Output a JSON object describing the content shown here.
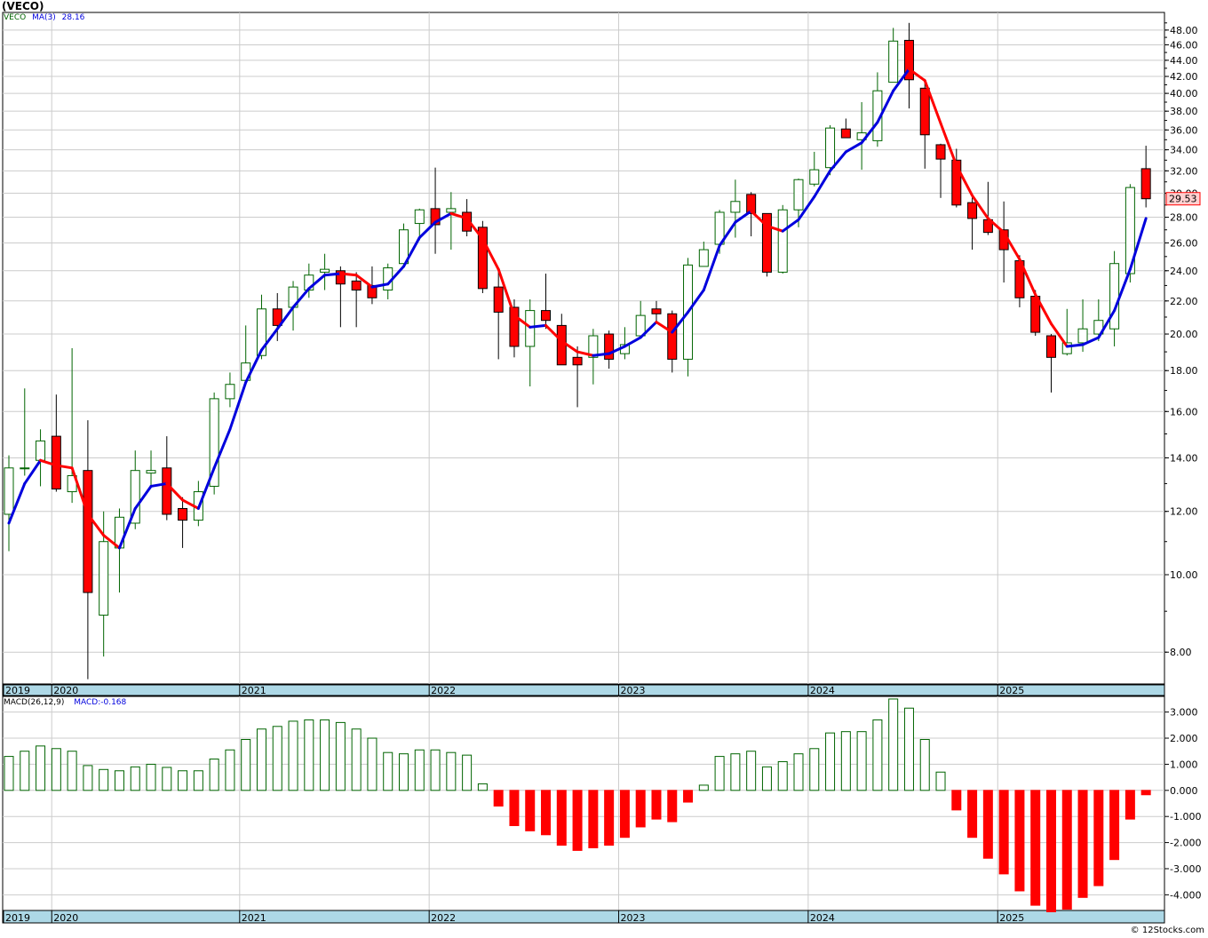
{
  "header": {
    "title": "(VECO)"
  },
  "price_legend": {
    "symbol": "VECO",
    "ma_label": "MA(3)",
    "ma_value": "28.16"
  },
  "macd_legend": {
    "label": "MACD(26,12,9)",
    "value_label": "MACD:-0.168"
  },
  "last_price_tag": "29.53",
  "credit": "© 12Stocks.com",
  "colors": {
    "up": "#006400",
    "down": "#ff0000",
    "ma_up": "#0000dd",
    "ma_down": "#ff0000",
    "axis_band": "#add8e6",
    "grid": "#cccccc"
  },
  "chart_data": [
    {
      "type": "candlestick",
      "scale": "log",
      "ylim": [
        7.3,
        50.5
      ],
      "y_ticks": [
        "8.00",
        "10.00",
        "12.00",
        "14.00",
        "16.00",
        "18.00",
        "20.00",
        "22.00",
        "24.00",
        "26.00",
        "28.00",
        "30.00",
        "32.00",
        "34.00",
        "36.00",
        "38.00",
        "40.00",
        "42.00",
        "44.00",
        "46.00",
        "48.00"
      ],
      "x_labels": [
        "2019",
        "2020",
        "2021",
        "2022",
        "2023",
        "2024",
        "2025"
      ],
      "grid": true,
      "candles": [
        {
          "o": 11.9,
          "h": 14.1,
          "l": 10.7,
          "c": 13.6
        },
        {
          "o": 13.6,
          "h": 17.1,
          "l": 13.3,
          "c": 13.6
        },
        {
          "o": 13.9,
          "h": 15.2,
          "l": 12.9,
          "c": 14.7
        },
        {
          "o": 14.9,
          "h": 16.8,
          "l": 12.7,
          "c": 12.8
        },
        {
          "o": 12.7,
          "h": 19.2,
          "l": 12.3,
          "c": 13.3
        },
        {
          "o": 13.5,
          "h": 15.6,
          "l": 7.4,
          "c": 9.5
        },
        {
          "o": 8.9,
          "h": 12.0,
          "l": 7.9,
          "c": 11.0
        },
        {
          "o": 10.8,
          "h": 12.1,
          "l": 9.5,
          "c": 11.8
        },
        {
          "o": 11.6,
          "h": 14.3,
          "l": 11.4,
          "c": 13.5
        },
        {
          "o": 13.4,
          "h": 14.3,
          "l": 12.9,
          "c": 13.5
        },
        {
          "o": 13.6,
          "h": 14.9,
          "l": 11.7,
          "c": 11.9
        },
        {
          "o": 12.1,
          "h": 12.5,
          "l": 10.8,
          "c": 11.7
        },
        {
          "o": 11.7,
          "h": 13.1,
          "l": 11.5,
          "c": 12.7
        },
        {
          "o": 12.9,
          "h": 16.9,
          "l": 12.6,
          "c": 16.6
        },
        {
          "o": 16.6,
          "h": 17.9,
          "l": 16.2,
          "c": 17.3
        },
        {
          "o": 17.5,
          "h": 20.5,
          "l": 17.3,
          "c": 18.4
        },
        {
          "o": 18.8,
          "h": 22.4,
          "l": 18.6,
          "c": 21.5
        },
        {
          "o": 21.5,
          "h": 22.5,
          "l": 19.6,
          "c": 20.5
        },
        {
          "o": 21.6,
          "h": 23.3,
          "l": 20.2,
          "c": 22.9
        },
        {
          "o": 22.7,
          "h": 24.5,
          "l": 22.2,
          "c": 23.7
        },
        {
          "o": 23.9,
          "h": 25.2,
          "l": 22.7,
          "c": 24.1
        },
        {
          "o": 24.0,
          "h": 24.3,
          "l": 20.4,
          "c": 23.1
        },
        {
          "o": 23.3,
          "h": 23.9,
          "l": 20.4,
          "c": 22.7
        },
        {
          "o": 23.0,
          "h": 24.3,
          "l": 21.8,
          "c": 22.2
        },
        {
          "o": 22.7,
          "h": 24.5,
          "l": 22.1,
          "c": 24.2
        },
        {
          "o": 24.5,
          "h": 27.5,
          "l": 24.3,
          "c": 27.0
        },
        {
          "o": 27.5,
          "h": 28.7,
          "l": 26.2,
          "c": 28.6
        },
        {
          "o": 28.7,
          "h": 32.3,
          "l": 25.2,
          "c": 27.4
        },
        {
          "o": 28.4,
          "h": 30.1,
          "l": 25.5,
          "c": 28.7
        },
        {
          "o": 28.4,
          "h": 29.5,
          "l": 26.5,
          "c": 26.9
        },
        {
          "o": 27.2,
          "h": 27.7,
          "l": 22.5,
          "c": 22.8
        },
        {
          "o": 22.9,
          "h": 24.1,
          "l": 18.6,
          "c": 21.3
        },
        {
          "o": 21.6,
          "h": 22.1,
          "l": 18.7,
          "c": 19.3
        },
        {
          "o": 19.3,
          "h": 22.1,
          "l": 17.2,
          "c": 21.4
        },
        {
          "o": 21.4,
          "h": 23.8,
          "l": 20.3,
          "c": 20.8
        },
        {
          "o": 20.5,
          "h": 21.2,
          "l": 18.3,
          "c": 18.3
        },
        {
          "o": 18.7,
          "h": 19.3,
          "l": 16.2,
          "c": 18.3
        },
        {
          "o": 18.7,
          "h": 20.3,
          "l": 17.3,
          "c": 19.9
        },
        {
          "o": 20.0,
          "h": 20.2,
          "l": 18.1,
          "c": 18.6
        },
        {
          "o": 18.9,
          "h": 20.4,
          "l": 18.6,
          "c": 19.4
        },
        {
          "o": 19.9,
          "h": 22.0,
          "l": 19.9,
          "c": 21.1
        },
        {
          "o": 21.5,
          "h": 22.0,
          "l": 20.7,
          "c": 21.2
        },
        {
          "o": 21.2,
          "h": 21.4,
          "l": 17.9,
          "c": 18.6
        },
        {
          "o": 18.6,
          "h": 24.9,
          "l": 17.7,
          "c": 24.4
        },
        {
          "o": 24.3,
          "h": 26.1,
          "l": 24.3,
          "c": 25.5
        },
        {
          "o": 25.9,
          "h": 28.6,
          "l": 25.2,
          "c": 28.4
        },
        {
          "o": 28.4,
          "h": 31.2,
          "l": 26.4,
          "c": 29.3
        },
        {
          "o": 29.9,
          "h": 30.1,
          "l": 26.5,
          "c": 28.3
        },
        {
          "o": 28.3,
          "h": 28.3,
          "l": 23.6,
          "c": 23.9
        },
        {
          "o": 23.9,
          "h": 29.0,
          "l": 23.8,
          "c": 28.6
        },
        {
          "o": 28.6,
          "h": 31.3,
          "l": 27.2,
          "c": 31.2
        },
        {
          "o": 30.8,
          "h": 33.8,
          "l": 30.6,
          "c": 32.1
        },
        {
          "o": 32.3,
          "h": 36.5,
          "l": 31.6,
          "c": 36.2
        },
        {
          "o": 36.1,
          "h": 37.2,
          "l": 35.5,
          "c": 35.2
        },
        {
          "o": 35.0,
          "h": 39.0,
          "l": 32.1,
          "c": 35.7
        },
        {
          "o": 34.9,
          "h": 42.5,
          "l": 34.3,
          "c": 40.3
        },
        {
          "o": 41.3,
          "h": 48.3,
          "l": 41.3,
          "c": 46.5
        },
        {
          "o": 46.6,
          "h": 49.0,
          "l": 38.3,
          "c": 41.6
        },
        {
          "o": 40.6,
          "h": 41.7,
          "l": 32.2,
          "c": 35.5
        },
        {
          "o": 34.5,
          "h": 34.6,
          "l": 29.6,
          "c": 33.1
        },
        {
          "o": 33.0,
          "h": 34.1,
          "l": 28.8,
          "c": 29.0
        },
        {
          "o": 29.2,
          "h": 29.9,
          "l": 25.5,
          "c": 27.9
        },
        {
          "o": 27.8,
          "h": 31.0,
          "l": 26.6,
          "c": 26.8
        },
        {
          "o": 27.0,
          "h": 29.3,
          "l": 23.2,
          "c": 25.5
        },
        {
          "o": 24.7,
          "h": 25.1,
          "l": 21.6,
          "c": 22.2
        },
        {
          "o": 22.3,
          "h": 22.7,
          "l": 19.9,
          "c": 20.1
        },
        {
          "o": 19.9,
          "h": 20.0,
          "l": 16.9,
          "c": 18.7
        },
        {
          "o": 18.9,
          "h": 21.5,
          "l": 18.8,
          "c": 19.5
        },
        {
          "o": 19.5,
          "h": 22.1,
          "l": 19.0,
          "c": 20.3
        },
        {
          "o": 20.0,
          "h": 22.1,
          "l": 19.6,
          "c": 20.8
        },
        {
          "o": 20.3,
          "h": 25.4,
          "l": 19.3,
          "c": 24.5
        },
        {
          "o": 23.8,
          "h": 30.8,
          "l": 23.2,
          "c": 30.5
        },
        {
          "o": 32.2,
          "h": 34.4,
          "l": 28.8,
          "c": 29.53
        }
      ],
      "ma3": [
        11.6,
        13.0,
        13.9,
        13.7,
        13.6,
        11.9,
        11.2,
        10.8,
        12.1,
        12.9,
        13.0,
        12.4,
        12.1,
        13.6,
        15.2,
        17.4,
        19.1,
        20.3,
        21.6,
        22.8,
        23.7,
        23.8,
        23.7,
        22.9,
        23.1,
        24.3,
        26.4,
        27.6,
        28.3,
        27.9,
        26.3,
        24.1,
        21.1,
        20.4,
        20.5,
        19.6,
        19.0,
        18.8,
        18.9,
        19.3,
        19.8,
        20.7,
        20.1,
        21.3,
        22.7,
        25.8,
        27.6,
        28.5,
        27.3,
        26.9,
        27.8,
        29.7,
        32.0,
        33.8,
        34.7,
        36.8,
        40.3,
        42.9,
        41.5,
        36.7,
        32.5,
        29.8,
        27.9,
        26.8,
        24.8,
        22.4,
        20.6,
        19.3,
        19.4,
        19.8,
        21.4,
        24.1,
        27.9
      ]
    },
    {
      "type": "bar",
      "name": "MACD(26,12,9)",
      "ylim": [
        -4.6,
        3.6
      ],
      "y_ticks": [
        "3.000",
        "2.000",
        "1.000",
        "0.000",
        "-1.000",
        "-2.000",
        "-3.000",
        "-4.000"
      ],
      "x_labels": [
        "2019",
        "2020",
        "2021",
        "2022",
        "2023",
        "2024",
        "2025"
      ],
      "values": [
        1.3,
        1.5,
        1.7,
        1.6,
        1.5,
        0.95,
        0.8,
        0.75,
        0.9,
        1.0,
        0.88,
        0.75,
        0.75,
        1.2,
        1.55,
        1.95,
        2.35,
        2.45,
        2.65,
        2.7,
        2.7,
        2.6,
        2.35,
        2.0,
        1.45,
        1.4,
        1.55,
        1.55,
        1.45,
        1.35,
        0.25,
        -0.6,
        -1.35,
        -1.55,
        -1.7,
        -2.1,
        -2.3,
        -2.2,
        -2.1,
        -1.8,
        -1.4,
        -1.1,
        -1.2,
        -0.45,
        0.2,
        1.3,
        1.4,
        1.5,
        0.9,
        1.1,
        1.4,
        1.6,
        2.2,
        2.25,
        2.25,
        2.7,
        3.5,
        3.15,
        1.95,
        0.7,
        -0.75,
        -1.8,
        -2.6,
        -3.2,
        -3.85,
        -4.4,
        -4.65,
        -4.55,
        -4.1,
        -3.65,
        -2.65,
        -1.1,
        -0.168
      ]
    }
  ]
}
